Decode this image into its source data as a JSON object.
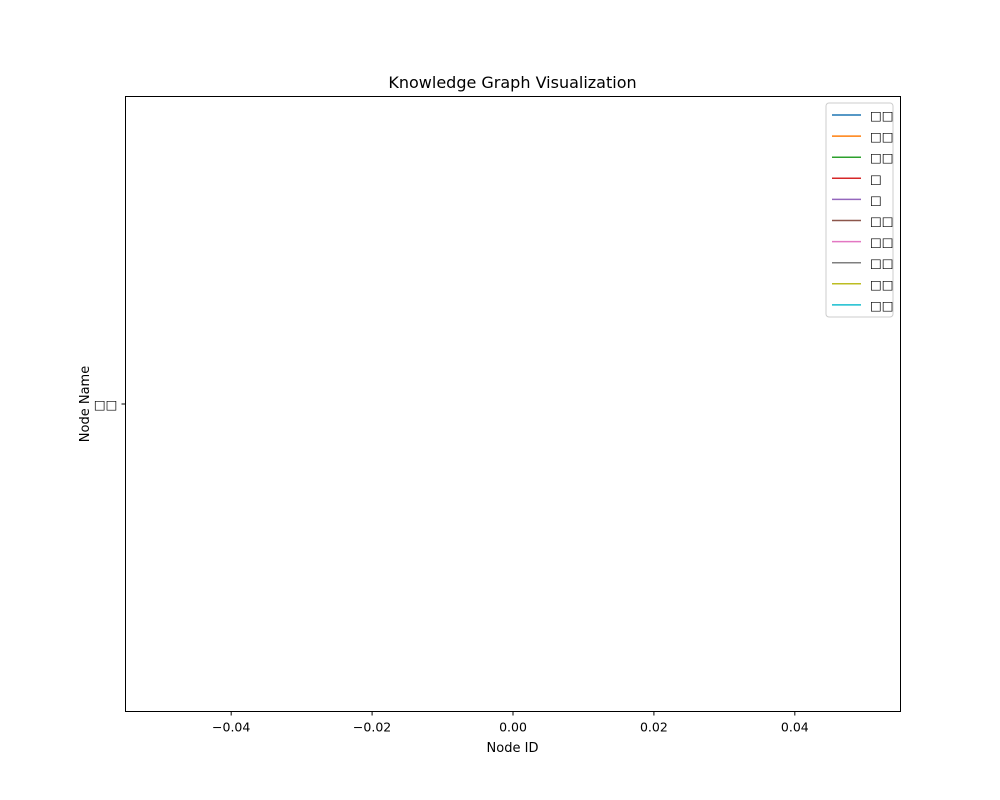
{
  "chart_data": {
    "type": "line",
    "title": "Knowledge Graph Visualization",
    "xlabel": "Node ID",
    "ylabel": "Node Name",
    "xlim": [
      -0.055,
      0.055
    ],
    "x_ticks": [
      -0.04,
      -0.02,
      0.0,
      0.02,
      0.04
    ],
    "x_tick_labels": [
      "−0.04",
      "−0.02",
      "0.00",
      "0.02",
      "0.04"
    ],
    "y_tick_labels": [
      "□□"
    ],
    "grid": false,
    "legend_position": "top-right",
    "series": [
      {
        "name": "□□",
        "color": "#1f77b4",
        "values": []
      },
      {
        "name": "□□",
        "color": "#ff7f0e",
        "values": []
      },
      {
        "name": "□□",
        "color": "#2ca02c",
        "values": []
      },
      {
        "name": "□",
        "color": "#d62728",
        "values": []
      },
      {
        "name": "□",
        "color": "#9467bd",
        "values": []
      },
      {
        "name": "□□",
        "color": "#8c564b",
        "values": []
      },
      {
        "name": "□□",
        "color": "#e377c2",
        "values": []
      },
      {
        "name": "□□",
        "color": "#7f7f7f",
        "values": []
      },
      {
        "name": "□□",
        "color": "#bcbd22",
        "values": []
      },
      {
        "name": "□□",
        "color": "#17becf",
        "values": []
      }
    ]
  }
}
